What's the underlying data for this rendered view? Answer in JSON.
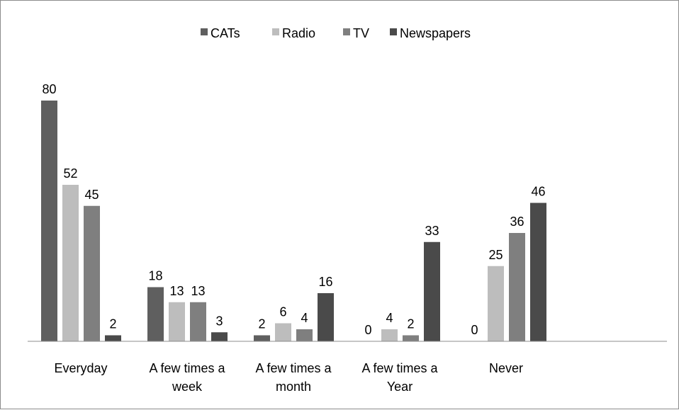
{
  "chart_data": {
    "type": "bar",
    "categories": [
      [
        "Everyday"
      ],
      [
        "A few times a",
        "week"
      ],
      [
        "A few times a",
        "month"
      ],
      [
        "A few times a",
        "Year"
      ],
      [
        "Never"
      ]
    ],
    "series": [
      {
        "name": "CATs",
        "color": "#5f5f5f",
        "values": [
          80,
          18,
          2,
          0,
          0
        ]
      },
      {
        "name": "Radio",
        "color": "#bdbdbd",
        "values": [
          52,
          13,
          6,
          4,
          25
        ]
      },
      {
        "name": "TV",
        "color": "#7f7f7f",
        "values": [
          45,
          13,
          4,
          2,
          36
        ]
      },
      {
        "name": "Newspapers",
        "color": "#4a4a4a",
        "values": [
          2,
          3,
          16,
          33,
          46
        ]
      }
    ],
    "ylim": [
      0,
      80
    ],
    "grid": false,
    "legend": "top-center",
    "data_labels": true
  }
}
